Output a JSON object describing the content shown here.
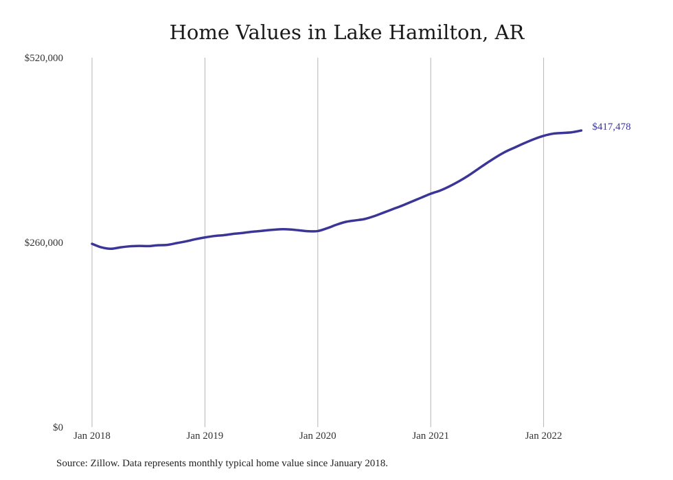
{
  "chart_data": {
    "type": "line",
    "title": "Home Values in Lake Hamilton, AR",
    "xlabel": "",
    "ylabel": "",
    "ylim": [
      0,
      520000
    ],
    "y_ticks": [
      "$0",
      "$260,000",
      "$520,000"
    ],
    "y_tick_values": [
      0,
      260000,
      520000
    ],
    "x_ticks": [
      "Jan 2018",
      "Jan 2019",
      "Jan 2020",
      "Jan 2021",
      "Jan 2022"
    ],
    "x_tick_months": [
      0,
      12,
      24,
      36,
      48
    ],
    "grid": "vertical",
    "line_color": "#3b3597",
    "end_label": "$417,478",
    "series": [
      {
        "values": [
          258000,
          253000,
          251000,
          253000,
          254500,
          255000,
          254800,
          256000,
          256500,
          259000,
          261500,
          264500,
          267000,
          269000,
          270200,
          272000,
          273300,
          275000,
          276200,
          277500,
          278500,
          278300,
          277000,
          275700,
          276000,
          280000,
          285000,
          289000,
          291000,
          293000,
          297000,
          302000,
          307000,
          312000,
          317500,
          323000,
          328500,
          333000,
          339000,
          346000,
          354000,
          363000,
          372000,
          380500,
          388000,
          394000,
          400000,
          405500,
          410000,
          413000,
          414000,
          415000,
          417478
        ]
      }
    ]
  },
  "source_note": "Source: Zillow. Data represents monthly typical home value since January 2018."
}
